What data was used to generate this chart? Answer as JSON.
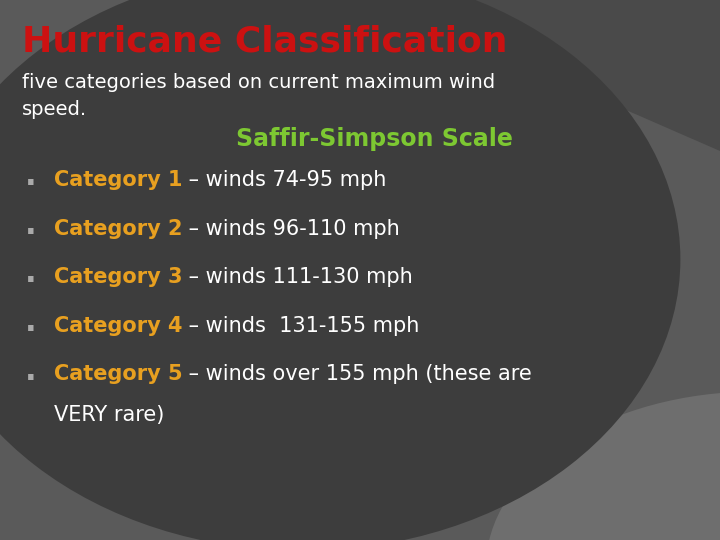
{
  "title": "Hurricane Classification",
  "subtitle_line1": "five categories based on current maximum wind",
  "subtitle_line2": "speed.",
  "saffir_label": "Saffir-Simpson Scale",
  "categories": [
    {
      "label": "Category 1",
      "desc": " – winds 74-95 mph"
    },
    {
      "label": "Category 2",
      "desc": " – winds 96-110 mph"
    },
    {
      "label": "Category 3",
      "desc": " – winds 111-130 mph"
    },
    {
      "label": "Category 4",
      "desc": " – winds  131-155 mph"
    },
    {
      "label": "Category 5",
      "desc": " – winds over 155 mph (these are"
    }
  ],
  "cat5_continuation": "VERY rare)",
  "bg_outer": "#5a5a5a",
  "bg_dark_panel": "#3d3d3d",
  "bg_top_right": "#4a4a4a",
  "bg_bottom_right": "#6e6e6e",
  "title_color": "#cc1111",
  "subtitle_color": "#ffffff",
  "saffir_color": "#7dc832",
  "category_color": "#e8a020",
  "desc_color": "#ffffff",
  "bullet_color": "#aaaaaa",
  "title_fontsize": 26,
  "subtitle_fontsize": 14,
  "saffir_fontsize": 17,
  "cat_fontsize": 15,
  "desc_fontsize": 15
}
